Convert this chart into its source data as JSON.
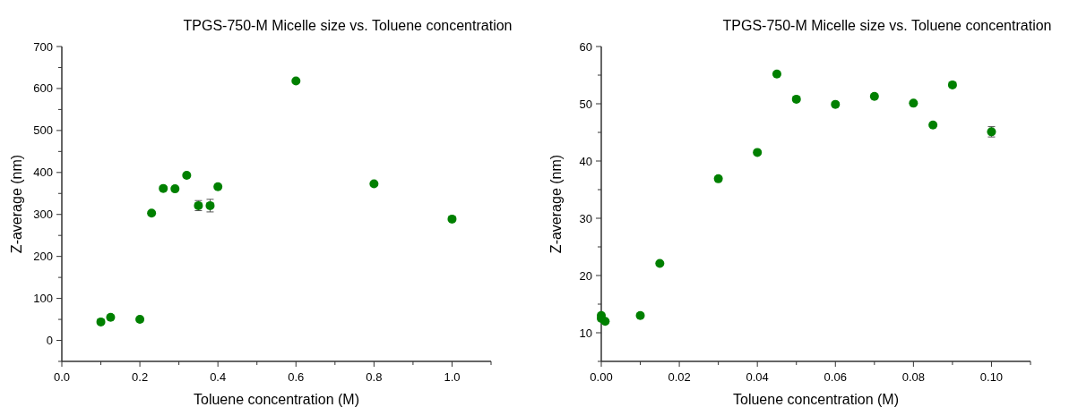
{
  "chart_data": [
    {
      "type": "scatter",
      "title": "TPGS-750-M Micelle size vs. Toluene concentration",
      "xlabel": "Toluene concentration (M)",
      "ylabel": "Z-average (nm)",
      "marker": "circle",
      "grid": false,
      "x": [
        0.1,
        0.125,
        0.2,
        0.23,
        0.26,
        0.29,
        0.32,
        0.35,
        0.38,
        0.4,
        0.6,
        0.8,
        1.0
      ],
      "series": [
        {
          "color": "#008000",
          "values": [
            44,
            55,
            50,
            303,
            362,
            361,
            393,
            321,
            321,
            366,
            618,
            373,
            289
          ],
          "errors": [
            null,
            null,
            null,
            null,
            null,
            null,
            null,
            12,
            15,
            null,
            null,
            null,
            null
          ]
        }
      ],
      "xlim": [
        0,
        1.1
      ],
      "xticks": [
        {
          "value": 0,
          "label": "0.0"
        },
        {
          "value": 0.1,
          "label": null
        },
        {
          "value": 0.2,
          "label": "0.2"
        },
        {
          "value": 0.3,
          "label": null
        },
        {
          "value": 0.4,
          "label": "0.4"
        },
        {
          "value": 0.5,
          "label": null
        },
        {
          "value": 0.6,
          "label": "0.6"
        },
        {
          "value": 0.7,
          "label": null
        },
        {
          "value": 0.8,
          "label": "0.8"
        },
        {
          "value": 0.9,
          "label": null
        },
        {
          "value": 1.0,
          "label": "1.0"
        },
        {
          "value": 1.1,
          "label": null
        }
      ],
      "ylim": [
        -50,
        700
      ],
      "yticks": [
        {
          "value": -50,
          "label": null
        },
        0,
        {
          "value": 50,
          "label": null
        },
        100,
        {
          "value": 150,
          "label": null
        },
        200,
        {
          "value": 250,
          "label": null
        },
        300,
        {
          "value": 350,
          "label": null
        },
        400,
        {
          "value": 450,
          "label": null
        },
        500,
        {
          "value": 550,
          "label": null
        },
        600,
        {
          "value": 650,
          "label": null
        },
        700
      ]
    },
    {
      "type": "scatter",
      "title": "TPGS-750-M Micelle size vs. Toluene concentration",
      "xlabel": "Toluene concentration (M)",
      "ylabel": "Z-average (nm)",
      "marker": "circle",
      "grid": false,
      "x": [
        0,
        0,
        0.001,
        0.01,
        0.015,
        0.03,
        0.04,
        0.045,
        0.05,
        0.06,
        0.07,
        0.08,
        0.085,
        0.09,
        0.1
      ],
      "series": [
        {
          "color": "#008000",
          "values": [
            13.0,
            12.5,
            12.0,
            13.0,
            22.1,
            36.9,
            41.5,
            55.2,
            50.8,
            49.9,
            51.3,
            50.1,
            46.3,
            53.3,
            45.1
          ],
          "errors": [
            null,
            null,
            null,
            null,
            null,
            null,
            null,
            null,
            null,
            null,
            null,
            null,
            null,
            null,
            0.9
          ]
        }
      ],
      "xlim": [
        0,
        0.11
      ],
      "xticks": [
        {
          "value": 0,
          "label": "0.00"
        },
        {
          "value": 0.01,
          "label": null
        },
        {
          "value": 0.02,
          "label": "0.02"
        },
        {
          "value": 0.03,
          "label": null
        },
        {
          "value": 0.04,
          "label": "0.04"
        },
        {
          "value": 0.05,
          "label": null
        },
        {
          "value": 0.06,
          "label": "0.06"
        },
        {
          "value": 0.07,
          "label": null
        },
        {
          "value": 0.08,
          "label": "0.08"
        },
        {
          "value": 0.09,
          "label": null
        },
        {
          "value": 0.1,
          "label": "0.10"
        },
        {
          "value": 0.11,
          "label": null
        }
      ],
      "ylim": [
        5,
        60
      ],
      "yticks": [
        {
          "value": 5,
          "label": null
        },
        10,
        {
          "value": 15,
          "label": null
        },
        20,
        {
          "value": 25,
          "label": null
        },
        30,
        {
          "value": 35,
          "label": null
        },
        40,
        {
          "value": 45,
          "label": null
        },
        50,
        {
          "value": 55,
          "label": null
        },
        60
      ]
    }
  ]
}
